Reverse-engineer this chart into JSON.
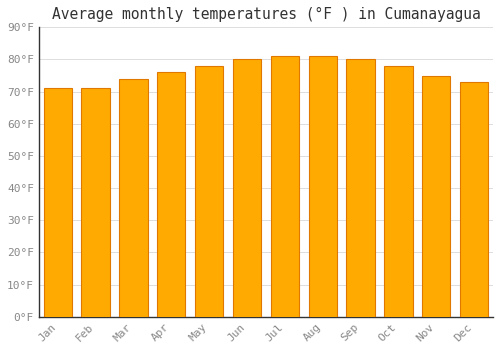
{
  "months": [
    "Jan",
    "Feb",
    "Mar",
    "Apr",
    "May",
    "Jun",
    "Jul",
    "Aug",
    "Sep",
    "Oct",
    "Nov",
    "Dec"
  ],
  "values": [
    71,
    71,
    74,
    76,
    78,
    80,
    81,
    81,
    80,
    78,
    75,
    73
  ],
  "bar_color_main": "#FFAA00",
  "bar_color_edge": "#E07800",
  "background_color": "#FFFFFF",
  "title": "Average monthly temperatures (°F ) in Cumanayagua",
  "title_fontsize": 10.5,
  "ylim": [
    0,
    90
  ],
  "ytick_step": 10,
  "grid_color": "#DDDDDD",
  "tick_label_color": "#888888",
  "spine_color": "#333333",
  "font_family": "monospace",
  "bar_width": 0.75
}
